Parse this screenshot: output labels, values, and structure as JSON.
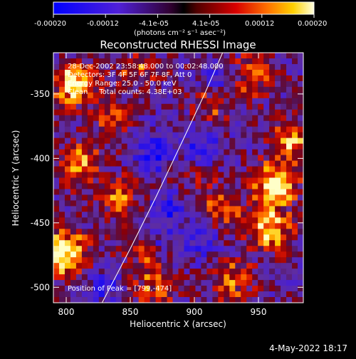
{
  "colorbar": {
    "tick_labels": [
      "-0.00020",
      "-0.00012",
      "-4.1e-05",
      "4.1e-05",
      "0.00012",
      "0.00020"
    ],
    "unit_label": "(photons cm⁻² s⁻¹ asec⁻²)",
    "range": [
      -0.0002,
      0.0002
    ]
  },
  "chart_data": {
    "type": "heatmap",
    "title": "Reconstructed RHESSI Image",
    "xlabel": "Heliocentric X (arcsec)",
    "ylabel": "Heliocentric Y (arcsec)",
    "xlim": [
      790,
      985
    ],
    "ylim": [
      -512,
      -318
    ],
    "x_ticks": [
      800,
      850,
      900,
      950
    ],
    "y_ticks": [
      -350,
      -400,
      -450,
      -500
    ],
    "annotations": [
      "28-Dec-2002 23:58:48.000 to 00:02:48.000",
      "Detectors: 3F 4F 5F 6F 7F 8F, Att 0",
      "Energy Range: 25.0 - 50.0 keV",
      "Clean     Total counts: 4.38E+03"
    ],
    "peak_label": "Position of Peak = [799,-474]",
    "peak_position": [
      799,
      -474
    ],
    "limb_curve": [
      [
        828,
        -512
      ],
      [
        850,
        -470
      ],
      [
        870,
        -430
      ],
      [
        890,
        -388
      ],
      [
        908,
        -350
      ],
      [
        922,
        -318
      ]
    ],
    "hot_regions": [
      {
        "x": 806,
        "y": -342,
        "strength": 0.9
      },
      {
        "x": 800,
        "y": -474,
        "strength": 1.0
      },
      {
        "x": 810,
        "y": -405,
        "strength": 0.6
      },
      {
        "x": 963,
        "y": -420,
        "strength": 0.95
      },
      {
        "x": 958,
        "y": -455,
        "strength": 0.85
      },
      {
        "x": 975,
        "y": -385,
        "strength": 0.6
      },
      {
        "x": 945,
        "y": -335,
        "strength": 0.55
      },
      {
        "x": 915,
        "y": -355,
        "strength": 0.45
      },
      {
        "x": 860,
        "y": -470,
        "strength": 0.5
      },
      {
        "x": 840,
        "y": -430,
        "strength": 0.5
      },
      {
        "x": 870,
        "y": -500,
        "strength": 0.45
      },
      {
        "x": 930,
        "y": -495,
        "strength": 0.5
      },
      {
        "x": 920,
        "y": -440,
        "strength": 0.45
      },
      {
        "x": 835,
        "y": -370,
        "strength": 0.4
      },
      {
        "x": 855,
        "y": -330,
        "strength": 0.4
      },
      {
        "x": 900,
        "y": -410,
        "strength": 0.35
      }
    ],
    "cold_regions": [
      {
        "x": 870,
        "y": -395,
        "strength": 0.9
      },
      {
        "x": 905,
        "y": -395,
        "strength": 0.8
      },
      {
        "x": 880,
        "y": -440,
        "strength": 0.6
      },
      {
        "x": 920,
        "y": -340,
        "strength": 0.6
      },
      {
        "x": 870,
        "y": -465,
        "strength": 0.5
      },
      {
        "x": 830,
        "y": -500,
        "strength": 0.5
      },
      {
        "x": 905,
        "y": -465,
        "strength": 0.55
      }
    ]
  },
  "footer": {
    "date": "4-May-2022 18:17"
  }
}
